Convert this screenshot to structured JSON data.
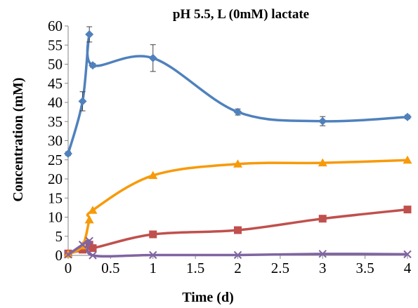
{
  "chart_data": {
    "type": "line",
    "title": "pH 5.5, L (0mM) lactate",
    "xlabel": "Time (d)",
    "ylabel": "Concentration (mM)",
    "xlim": [
      0,
      4
    ],
    "ylim": [
      0,
      60
    ],
    "x_ticks": [
      "0",
      "0.5",
      "1",
      "1.5",
      "2",
      "2.5",
      "3",
      "3.5",
      "4"
    ],
    "y_ticks": [
      "0",
      "5",
      "10",
      "15",
      "20",
      "25",
      "30",
      "35",
      "40",
      "45",
      "50",
      "55",
      "60"
    ],
    "grid": false,
    "legend": "none",
    "series": [
      {
        "color": "#4F81BD",
        "marker": "diamond",
        "x": [
          0,
          0.17,
          0.25,
          0.29,
          1,
          2,
          3,
          4
        ],
        "y": [
          26.6,
          40.3,
          57.8,
          49.7,
          51.6,
          37.5,
          35.1,
          36.2
        ],
        "err": [
          0.5,
          2.5,
          2.0,
          0.5,
          3.5,
          0.8,
          1.2,
          0.5
        ]
      },
      {
        "color": "#C0504D",
        "marker": "square",
        "x": [
          0,
          0.17,
          0.25,
          0.29,
          1,
          2,
          3,
          4
        ],
        "y": [
          0.5,
          1.5,
          2.8,
          1.9,
          5.5,
          6.6,
          9.6,
          12.0
        ],
        "err": [
          0,
          0,
          0,
          0,
          0,
          0,
          0,
          0
        ]
      },
      {
        "color": "#F79A0A",
        "marker": "triangle",
        "x": [
          0,
          0.17,
          0.25,
          0.29,
          1,
          2,
          3,
          4
        ],
        "y": [
          0.3,
          2.5,
          9.3,
          11.8,
          20.9,
          23.9,
          24.2,
          24.9
        ],
        "err": [
          0,
          0,
          0,
          0,
          0,
          0,
          0,
          0
        ]
      },
      {
        "color": "#8064A2",
        "marker": "x",
        "x": [
          0,
          0.17,
          0.25,
          0.29,
          1,
          2,
          3,
          4
        ],
        "y": [
          0.2,
          2.8,
          3.8,
          0.0,
          0.1,
          0.1,
          0.4,
          0.3
        ],
        "err": [
          0,
          0,
          0,
          0,
          0,
          0,
          0,
          0
        ]
      }
    ]
  }
}
